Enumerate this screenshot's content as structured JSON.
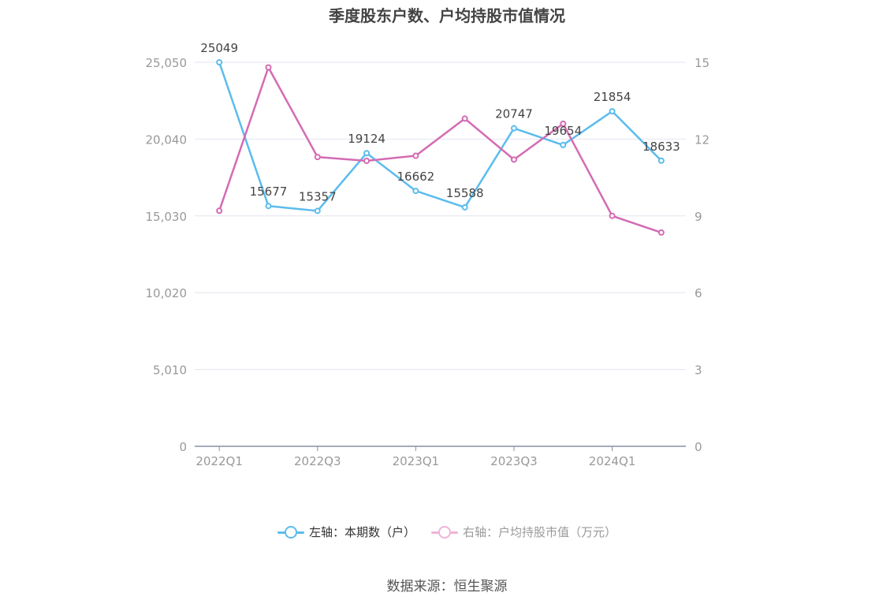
{
  "title": "季度股东户数、户均持股市值情况",
  "source": "数据来源：恒生聚源",
  "legend": {
    "left_label": "左轴：本期数（户）",
    "right_label": "右轴：户均持股市值（万元）"
  },
  "colors": {
    "left_series": "#5bbcee",
    "right_series": "#d46bb3",
    "right_series_legend": "#f0b3d8",
    "grid": "#e3e6f0",
    "axis": "#8a8fa8",
    "tick_text": "#999999",
    "label_text": "#444444"
  },
  "chart_data": {
    "type": "line",
    "categories": [
      "2022Q1",
      "2022Q2",
      "2022Q3",
      "2022Q4",
      "2023Q1",
      "2023Q2",
      "2023Q3",
      "2023Q4",
      "2024Q1",
      "2024Q2"
    ],
    "x_tick_labels": [
      "2022Q1",
      "",
      "2022Q3",
      "",
      "2023Q1",
      "",
      "2023Q3",
      "",
      "2024Q1",
      ""
    ],
    "left_axis": {
      "min": 0,
      "max": 25050,
      "ticks": [
        "0",
        "5,010",
        "10,020",
        "15,030",
        "20,040",
        "25,050"
      ]
    },
    "right_axis": {
      "min": 0,
      "max": 15,
      "ticks": [
        "0",
        "3",
        "6",
        "9",
        "12",
        "15"
      ]
    },
    "grid": true,
    "legend_position": "bottom",
    "series": [
      {
        "name": "左轴：本期数（户）",
        "axis": "left",
        "values": [
          25049,
          15677,
          15357,
          19124,
          16662,
          15588,
          20747,
          19654,
          21854,
          18633
        ],
        "labels": [
          "25049",
          "15677",
          "15357",
          "19124",
          "16662",
          "15588",
          "20747",
          "19654",
          "21854",
          "18633"
        ]
      },
      {
        "name": "右轴：户均持股市值（万元）",
        "axis": "right",
        "values": [
          9.2,
          14.8,
          11.3,
          11.15,
          11.35,
          12.8,
          11.2,
          12.6,
          9.0,
          8.35
        ]
      }
    ]
  }
}
